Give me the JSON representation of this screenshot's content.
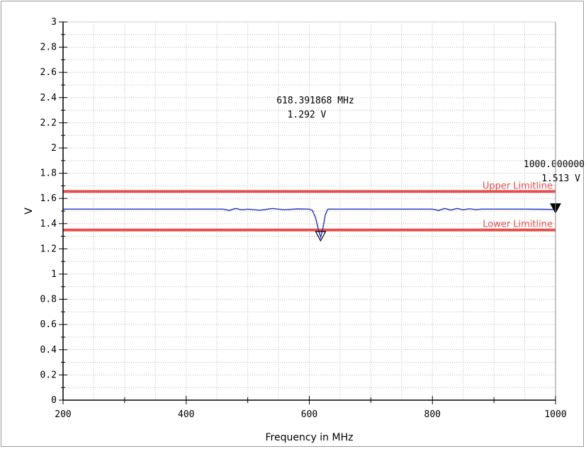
{
  "chart_data": {
    "type": "line",
    "xlabel": "Frequency in MHz",
    "ylabel": "V",
    "xlim": [
      200,
      1000
    ],
    "ylim": [
      0,
      3
    ],
    "grid": true,
    "x_ticks": [
      200,
      400,
      600,
      800,
      1000
    ],
    "x_tick_labels": [
      "200",
      "400",
      "600",
      "800",
      "1000"
    ],
    "y_ticks": [
      0,
      0.2,
      0.4,
      0.6,
      0.8,
      1,
      1.2,
      1.4,
      1.6,
      1.8,
      2,
      2.2,
      2.4,
      2.6,
      2.8,
      3
    ],
    "y_tick_labels": [
      "0",
      "0.2",
      "0.4",
      "0.6",
      "0.8",
      "1",
      "1.2",
      "1.4",
      "1.6",
      "1.8",
      "2",
      "2.2",
      "2.4",
      "2.6",
      "2.8",
      "3"
    ],
    "series": [
      {
        "color": "#2233bb",
        "x": [
          200,
          300,
          400,
          460,
          470,
          480,
          490,
          500,
          520,
          540,
          560,
          580,
          600,
          605,
          610,
          615,
          618.4,
          622,
          626,
          630,
          650,
          700,
          750,
          800,
          810,
          820,
          830,
          840,
          850,
          860,
          870,
          880,
          900,
          950,
          1000
        ],
        "y": [
          1.515,
          1.515,
          1.515,
          1.515,
          1.505,
          1.52,
          1.51,
          1.515,
          1.507,
          1.52,
          1.51,
          1.517,
          1.515,
          1.505,
          1.45,
          1.35,
          1.292,
          1.36,
          1.47,
          1.515,
          1.515,
          1.515,
          1.515,
          1.515,
          1.505,
          1.52,
          1.508,
          1.52,
          1.51,
          1.518,
          1.512,
          1.515,
          1.515,
          1.515,
          1.513
        ]
      }
    ],
    "limit_lines": [
      {
        "label": "Upper Limitline",
        "y": 1.655,
        "color": "#e35050"
      },
      {
        "label": "Lower Limitline",
        "y": 1.35,
        "color": "#e35050"
      }
    ],
    "markers": [
      {
        "x": 618.391868,
        "y": 1.292,
        "style": "open-triangle",
        "text_freq": "618.391868 MHz",
        "text_value": "1.292 V"
      },
      {
        "x": 1000,
        "y": 1.513,
        "style": "filled-triangle",
        "text_freq": "1000.000000",
        "text_value": "1.513 V"
      }
    ]
  }
}
